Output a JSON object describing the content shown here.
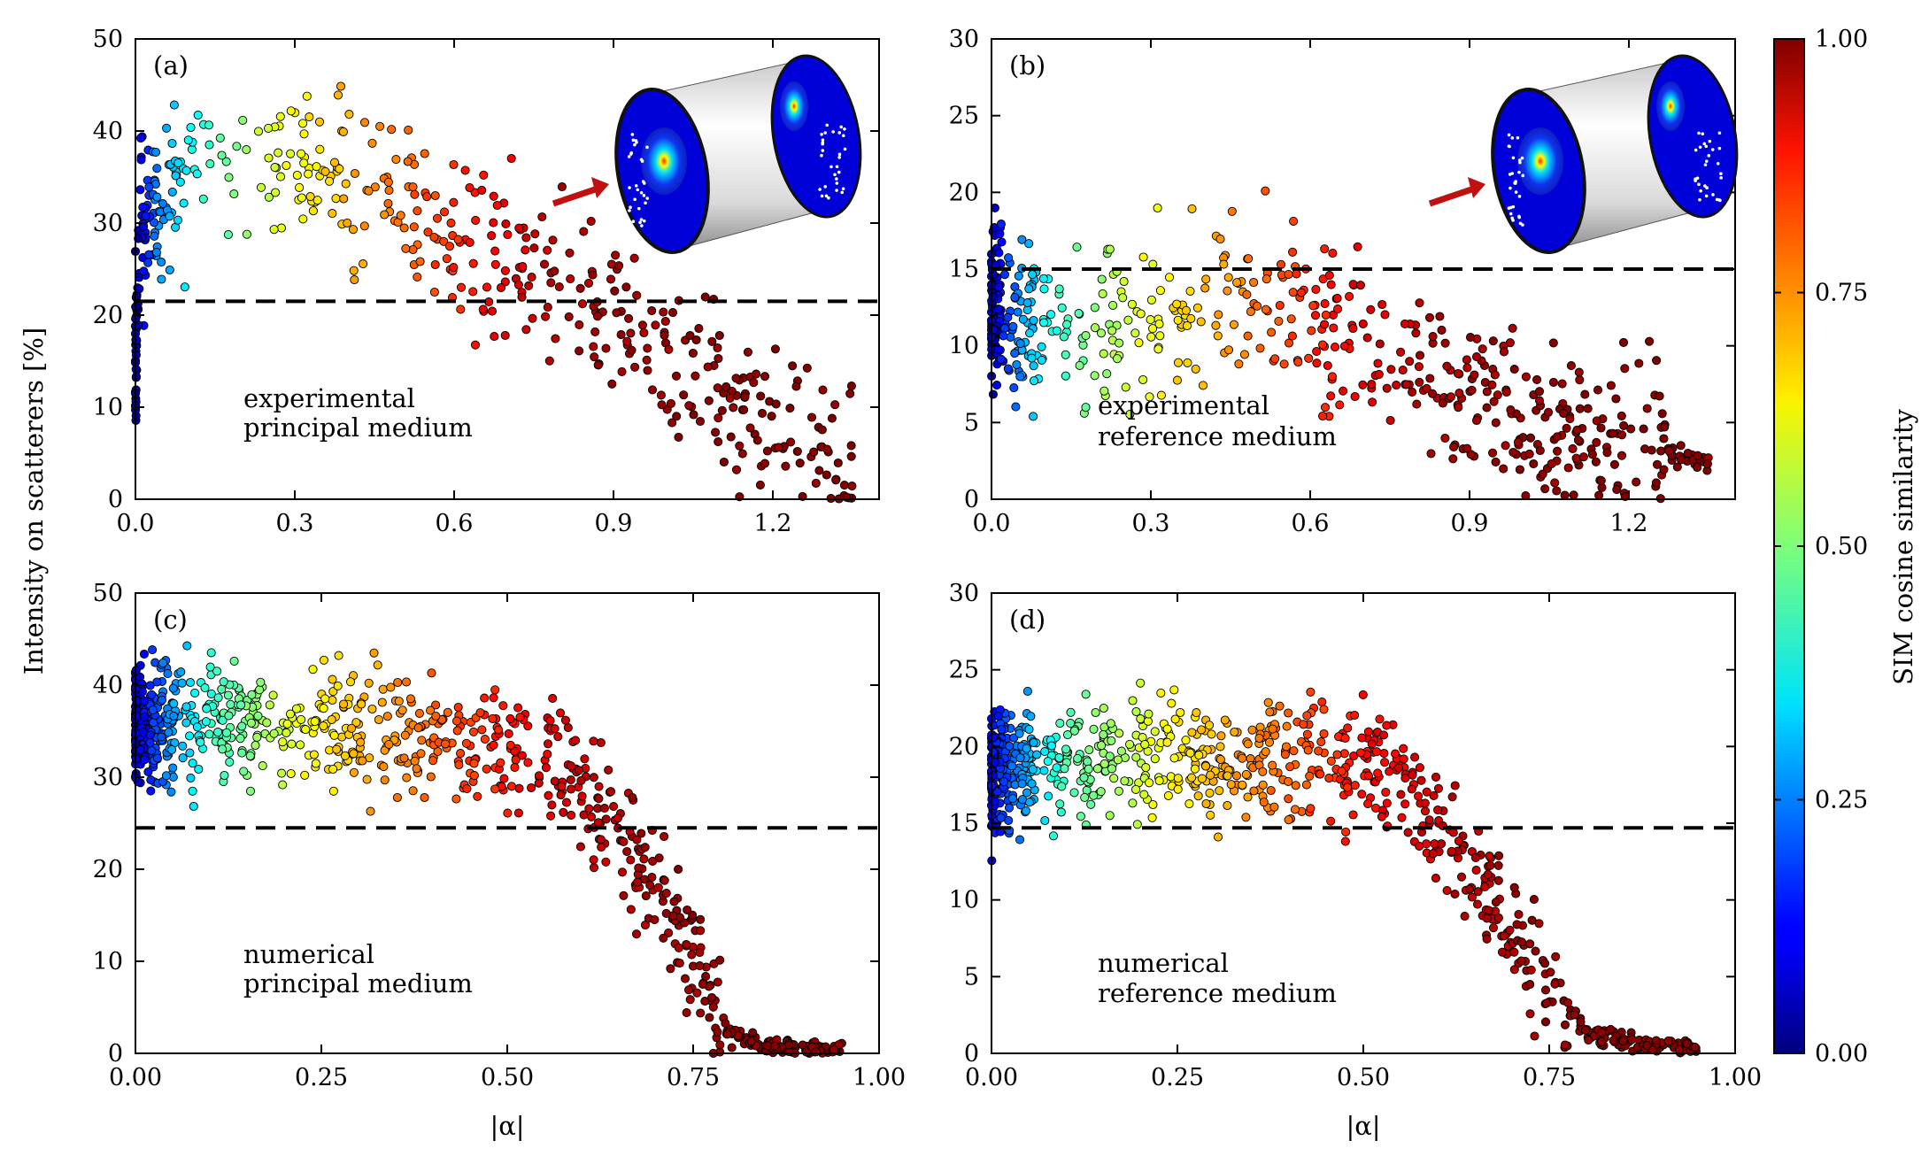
{
  "figure": {
    "ylabel": "Intensity on scatterers [%]",
    "colorbar": {
      "label": "SIM cosine similarity",
      "ticks": [
        "0.00",
        "0.25",
        "0.50",
        "0.75",
        "1.00"
      ],
      "range": [
        0,
        1
      ],
      "colormap": "jet"
    }
  },
  "chart_data": [
    {
      "id": "a",
      "type": "scatter",
      "panel_label": "(a)",
      "annotation": [
        "experimental",
        "principal medium"
      ],
      "xlim": [
        0,
        1.4
      ],
      "ylim": [
        0,
        50
      ],
      "xticks": [
        "0.0",
        "0.3",
        "0.6",
        "0.9",
        "1.2"
      ],
      "yticks": [
        "0",
        "10",
        "20",
        "30",
        "40",
        "50"
      ],
      "xlabel": "",
      "threshold_y": 21.5,
      "inset": "cylinder illustration with speckle patterns and scatterer dots",
      "anchors": [
        [
          0.0,
          14,
          0.02
        ],
        [
          0.005,
          24,
          0.05
        ],
        [
          0.01,
          28,
          0.1
        ],
        [
          0.02,
          31,
          0.15
        ],
        [
          0.04,
          33,
          0.25
        ],
        [
          0.08,
          35,
          0.33
        ],
        [
          0.15,
          36,
          0.45
        ],
        [
          0.22,
          37,
          0.55
        ],
        [
          0.3,
          36,
          0.62
        ],
        [
          0.4,
          34,
          0.7
        ],
        [
          0.5,
          32,
          0.77
        ],
        [
          0.6,
          28,
          0.84
        ],
        [
          0.7,
          25,
          0.9
        ],
        [
          0.8,
          22,
          0.95
        ],
        [
          0.9,
          19,
          0.97
        ],
        [
          1.0,
          15,
          0.98
        ],
        [
          1.1,
          12,
          0.99
        ],
        [
          1.2,
          8,
          1.0
        ],
        [
          1.35,
          4,
          1.0
        ]
      ],
      "n_points": 520,
      "seed": 11
    },
    {
      "id": "b",
      "type": "scatter",
      "panel_label": "(b)",
      "annotation": [
        "experimental",
        "reference medium"
      ],
      "xlim": [
        0,
        1.4
      ],
      "ylim": [
        0,
        30
      ],
      "xticks": [
        "0.0",
        "0.3",
        "0.6",
        "0.9",
        "1.2"
      ],
      "yticks": [
        "0",
        "5",
        "10",
        "15",
        "20",
        "25",
        "30"
      ],
      "xlabel": "",
      "threshold_y": 15,
      "inset": "cylinder illustration with speckle patterns and scatterer dots",
      "anchors": [
        [
          0.0,
          13,
          0.05
        ],
        [
          0.02,
          12.5,
          0.15
        ],
        [
          0.05,
          11.5,
          0.25
        ],
        [
          0.1,
          11,
          0.38
        ],
        [
          0.2,
          11.5,
          0.52
        ],
        [
          0.3,
          12.5,
          0.62
        ],
        [
          0.4,
          13,
          0.7
        ],
        [
          0.5,
          13,
          0.77
        ],
        [
          0.6,
          12,
          0.84
        ],
        [
          0.7,
          10.5,
          0.9
        ],
        [
          0.8,
          9,
          0.95
        ],
        [
          0.9,
          7.5,
          0.97
        ],
        [
          1.0,
          5.5,
          0.98
        ],
        [
          1.1,
          4,
          0.99
        ],
        [
          1.2,
          3.5,
          1.0
        ],
        [
          1.35,
          2.5,
          1.0
        ]
      ],
      "n_points": 620,
      "seed": 23
    },
    {
      "id": "c",
      "type": "scatter",
      "panel_label": "(c)",
      "annotation": [
        "numerical",
        "principal medium"
      ],
      "xlim": [
        0,
        1.0
      ],
      "ylim": [
        0,
        50
      ],
      "xticks": [
        "0.00",
        "0.25",
        "0.50",
        "0.75",
        "1.00"
      ],
      "yticks": [
        "0",
        "10",
        "20",
        "30",
        "40",
        "50"
      ],
      "xlabel": "|α|",
      "threshold_y": 24.5,
      "anchors": [
        [
          0.0,
          36,
          0.08
        ],
        [
          0.05,
          36,
          0.28
        ],
        [
          0.1,
          36,
          0.42
        ],
        [
          0.2,
          35,
          0.58
        ],
        [
          0.3,
          35,
          0.7
        ],
        [
          0.4,
          34,
          0.78
        ],
        [
          0.5,
          33,
          0.86
        ],
        [
          0.55,
          32,
          0.9
        ],
        [
          0.6,
          29,
          0.93
        ],
        [
          0.65,
          24,
          0.95
        ],
        [
          0.7,
          17,
          0.97
        ],
        [
          0.75,
          9,
          0.98
        ],
        [
          0.8,
          2,
          0.99
        ],
        [
          0.85,
          0.8,
          1.0
        ],
        [
          0.95,
          0.2,
          1.0
        ]
      ],
      "n_points": 900,
      "seed": 37
    },
    {
      "id": "d",
      "type": "scatter",
      "panel_label": "(d)",
      "annotation": [
        "numerical",
        "reference medium"
      ],
      "xlim": [
        0,
        1.0
      ],
      "ylim": [
        0,
        30
      ],
      "xticks": [
        "0.00",
        "0.25",
        "0.50",
        "0.75",
        "1.00"
      ],
      "yticks": [
        "0",
        "5",
        "10",
        "15",
        "20",
        "25",
        "30"
      ],
      "xlabel": "|α|",
      "threshold_y": 14.7,
      "anchors": [
        [
          0.0,
          18,
          0.12
        ],
        [
          0.05,
          18.5,
          0.3
        ],
        [
          0.1,
          19,
          0.45
        ],
        [
          0.2,
          19.5,
          0.58
        ],
        [
          0.3,
          19,
          0.7
        ],
        [
          0.4,
          19.5,
          0.78
        ],
        [
          0.5,
          19,
          0.87
        ],
        [
          0.55,
          18,
          0.9
        ],
        [
          0.6,
          15.5,
          0.93
        ],
        [
          0.65,
          12,
          0.95
        ],
        [
          0.7,
          8,
          0.97
        ],
        [
          0.75,
          4.5,
          0.98
        ],
        [
          0.8,
          1.5,
          0.99
        ],
        [
          0.85,
          0.8,
          1.0
        ],
        [
          0.95,
          0.2,
          1.0
        ]
      ],
      "n_points": 900,
      "seed": 53
    }
  ]
}
